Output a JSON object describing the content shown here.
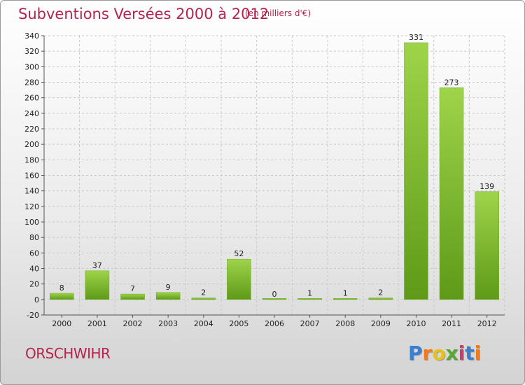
{
  "header": {
    "title": "Subventions Versées 2000 à 2012",
    "unit": "(en milliers d'€)"
  },
  "footer": {
    "commune": "ORSCHWIHR",
    "logo_letters": [
      "P",
      "r",
      "o",
      "x",
      "i",
      "t",
      "i"
    ],
    "logo_colors": [
      "#3a7fd0",
      "#f07b1e",
      "#e8c21a",
      "#5aa832",
      "#d13a6a",
      "#3a7fd0",
      "#f07b1e"
    ]
  },
  "chart_data": {
    "type": "bar",
    "title": "Subventions Versées 2000 à 2012",
    "subtitle": "(en milliers d'€)",
    "categories": [
      "2000",
      "2001",
      "2002",
      "2003",
      "2004",
      "2005",
      "2006",
      "2007",
      "2008",
      "2009",
      "2010",
      "2011",
      "2012"
    ],
    "values": [
      8,
      37,
      7,
      9,
      2,
      52,
      0,
      1,
      1,
      2,
      331,
      273,
      139
    ],
    "ylim": [
      -20,
      340
    ],
    "yticks": [
      -20,
      0,
      20,
      40,
      60,
      80,
      100,
      120,
      140,
      160,
      180,
      200,
      220,
      240,
      260,
      280,
      300,
      320,
      340
    ],
    "grid": true,
    "bar_color": "#7dbb2f"
  }
}
